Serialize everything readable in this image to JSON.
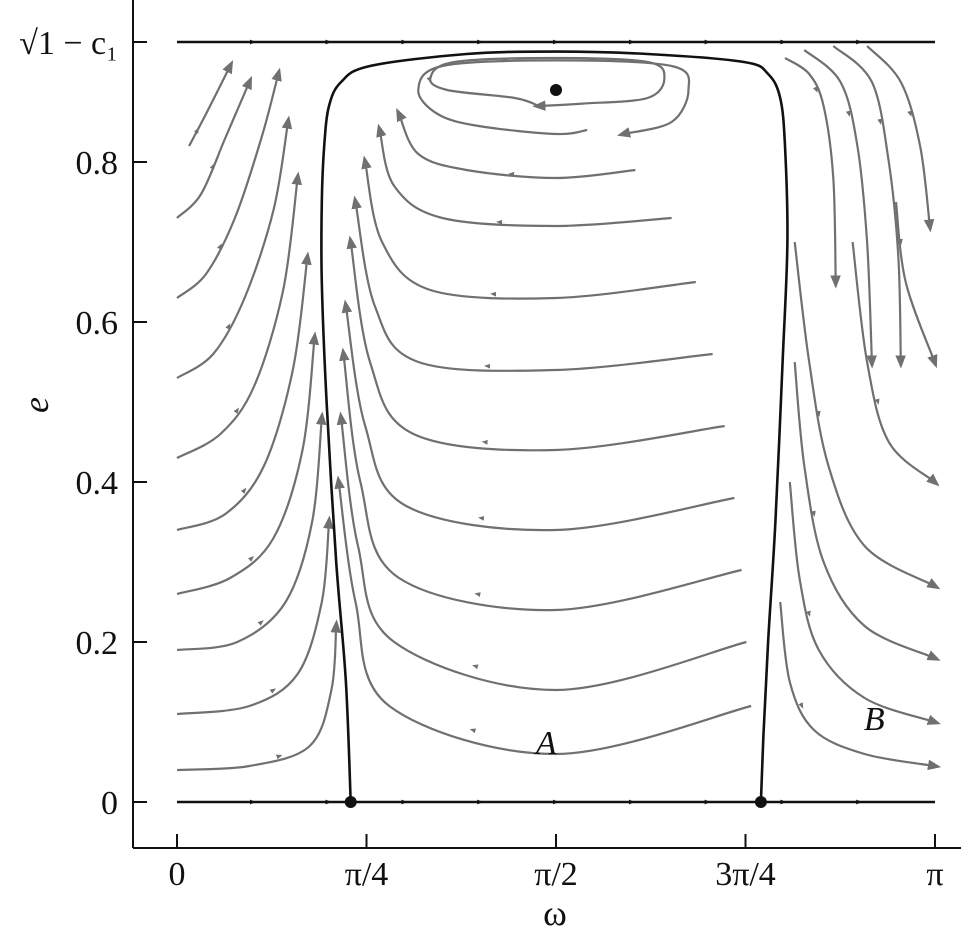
{
  "chart_data": {
    "type": "streamplot",
    "xlabel": "ω",
    "ylabel": "e",
    "xlim": [
      0,
      3.14159
    ],
    "ylim": [
      0,
      0.95
    ],
    "x_ticks": [
      {
        "value": 0,
        "label": "0"
      },
      {
        "value": 0.7854,
        "label": "π/4"
      },
      {
        "value": 1.5708,
        "label": "π/2"
      },
      {
        "value": 2.3562,
        "label": "3π/4"
      },
      {
        "value": 3.14159,
        "label": "π"
      }
    ],
    "y_ticks": [
      {
        "value": 0,
        "label": "0"
      },
      {
        "value": 0.2,
        "label": "0.2"
      },
      {
        "value": 0.4,
        "label": "0.4"
      },
      {
        "value": 0.6,
        "label": "0.6"
      },
      {
        "value": 0.8,
        "label": "0.8"
      },
      {
        "value": 0.95,
        "label": "√1 − c₁"
      }
    ],
    "top_label": "√1 − c₁",
    "region_labels": [
      {
        "text": "A",
        "x": 1.53,
        "y": 0.06
      },
      {
        "text": "B",
        "x": 2.89,
        "y": 0.09
      }
    ],
    "fixed_points": [
      {
        "name": "center",
        "x": 1.5708,
        "y": 0.89
      },
      {
        "name": "saddle-left",
        "x": 0.72,
        "y": 0.0
      },
      {
        "name": "saddle-right",
        "x": 2.42,
        "y": 0.0
      }
    ],
    "boundary_lines": [
      {
        "name": "e-zero-line",
        "y": 0.0
      },
      {
        "name": "e-max-line",
        "y": 0.95
      }
    ],
    "separatrix": {
      "points": [
        [
          0.72,
          0.0
        ],
        [
          0.7,
          0.15
        ],
        [
          0.66,
          0.3
        ],
        [
          0.62,
          0.5
        ],
        [
          0.6,
          0.65
        ],
        [
          0.6,
          0.75
        ],
        [
          0.61,
          0.82
        ],
        [
          0.63,
          0.87
        ],
        [
          0.68,
          0.9
        ],
        [
          0.8,
          0.92
        ],
        [
          1.2,
          0.935
        ],
        [
          1.57,
          0.938
        ],
        [
          1.95,
          0.935
        ],
        [
          2.35,
          0.925
        ],
        [
          2.45,
          0.91
        ],
        [
          2.5,
          0.88
        ],
        [
          2.52,
          0.82
        ],
        [
          2.53,
          0.7
        ],
        [
          2.51,
          0.55
        ],
        [
          2.48,
          0.35
        ],
        [
          2.45,
          0.2
        ],
        [
          2.43,
          0.08
        ],
        [
          2.42,
          0.0
        ]
      ]
    },
    "streamlines": [
      [
        [
          1.5,
          0.87
        ],
        [
          1.4,
          0.88
        ],
        [
          1.12,
          0.89
        ],
        [
          1.05,
          0.905
        ],
        [
          1.15,
          0.925
        ],
        [
          1.57,
          0.93
        ],
        [
          1.95,
          0.925
        ],
        [
          2.02,
          0.905
        ],
        [
          1.95,
          0.88
        ],
        [
          1.68,
          0.873
        ],
        [
          1.5,
          0.87
        ]
      ],
      [
        [
          1.7,
          0.84
        ],
        [
          1.57,
          0.835
        ],
        [
          1.25,
          0.845
        ],
        [
          1.08,
          0.86
        ],
        [
          1.0,
          0.89
        ],
        [
          1.1,
          0.92
        ],
        [
          1.57,
          0.927
        ],
        [
          2.05,
          0.92
        ],
        [
          2.12,
          0.89
        ],
        [
          2.05,
          0.85
        ],
        [
          1.85,
          0.835
        ]
      ],
      [
        [
          1.9,
          0.79
        ],
        [
          1.57,
          0.78
        ],
        [
          1.2,
          0.79
        ],
        [
          1.0,
          0.81
        ],
        [
          0.92,
          0.86
        ]
      ],
      [
        [
          2.05,
          0.73
        ],
        [
          1.57,
          0.72
        ],
        [
          1.1,
          0.73
        ],
        [
          0.9,
          0.77
        ],
        [
          0.84,
          0.84
        ]
      ],
      [
        [
          2.15,
          0.65
        ],
        [
          1.57,
          0.63
        ],
        [
          1.05,
          0.64
        ],
        [
          0.85,
          0.7
        ],
        [
          0.78,
          0.8
        ]
      ],
      [
        [
          2.22,
          0.56
        ],
        [
          1.57,
          0.54
        ],
        [
          1.0,
          0.55
        ],
        [
          0.82,
          0.62
        ],
        [
          0.74,
          0.75
        ]
      ],
      [
        [
          2.27,
          0.47
        ],
        [
          1.57,
          0.44
        ],
        [
          0.98,
          0.46
        ],
        [
          0.8,
          0.55
        ],
        [
          0.72,
          0.7
        ]
      ],
      [
        [
          2.31,
          0.38
        ],
        [
          1.57,
          0.34
        ],
        [
          0.95,
          0.37
        ],
        [
          0.78,
          0.47
        ],
        [
          0.7,
          0.62
        ]
      ],
      [
        [
          2.34,
          0.29
        ],
        [
          1.57,
          0.24
        ],
        [
          0.92,
          0.28
        ],
        [
          0.76,
          0.4
        ],
        [
          0.69,
          0.56
        ]
      ],
      [
        [
          2.36,
          0.2
        ],
        [
          1.57,
          0.14
        ],
        [
          0.9,
          0.2
        ],
        [
          0.75,
          0.32
        ],
        [
          0.68,
          0.48
        ]
      ],
      [
        [
          2.38,
          0.12
        ],
        [
          1.57,
          0.06
        ],
        [
          0.88,
          0.12
        ],
        [
          0.74,
          0.25
        ],
        [
          0.67,
          0.4
        ]
      ],
      [
        [
          0.0,
          0.04
        ],
        [
          0.3,
          0.045
        ],
        [
          0.55,
          0.07
        ],
        [
          0.64,
          0.14
        ],
        [
          0.66,
          0.22
        ]
      ],
      [
        [
          0.0,
          0.11
        ],
        [
          0.3,
          0.12
        ],
        [
          0.5,
          0.16
        ],
        [
          0.6,
          0.25
        ],
        [
          0.63,
          0.35
        ]
      ],
      [
        [
          0.0,
          0.19
        ],
        [
          0.25,
          0.2
        ],
        [
          0.45,
          0.25
        ],
        [
          0.56,
          0.35
        ],
        [
          0.6,
          0.48
        ]
      ],
      [
        [
          0.0,
          0.26
        ],
        [
          0.22,
          0.28
        ],
        [
          0.4,
          0.33
        ],
        [
          0.52,
          0.44
        ],
        [
          0.57,
          0.58
        ]
      ],
      [
        [
          0.0,
          0.34
        ],
        [
          0.2,
          0.36
        ],
        [
          0.36,
          0.42
        ],
        [
          0.48,
          0.54
        ],
        [
          0.54,
          0.68
        ]
      ],
      [
        [
          0.0,
          0.43
        ],
        [
          0.18,
          0.46
        ],
        [
          0.32,
          0.52
        ],
        [
          0.44,
          0.64
        ],
        [
          0.5,
          0.78
        ]
      ],
      [
        [
          0.0,
          0.53
        ],
        [
          0.15,
          0.56
        ],
        [
          0.28,
          0.63
        ],
        [
          0.4,
          0.74
        ],
        [
          0.46,
          0.85
        ]
      ],
      [
        [
          0.0,
          0.63
        ],
        [
          0.12,
          0.66
        ],
        [
          0.24,
          0.73
        ],
        [
          0.35,
          0.83
        ],
        [
          0.42,
          0.91
        ]
      ],
      [
        [
          0.0,
          0.73
        ],
        [
          0.1,
          0.76
        ],
        [
          0.2,
          0.83
        ],
        [
          0.3,
          0.9
        ]
      ],
      [
        [
          0.05,
          0.82
        ],
        [
          0.12,
          0.86
        ],
        [
          0.22,
          0.92
        ]
      ],
      [
        [
          2.52,
          0.93
        ],
        [
          2.62,
          0.91
        ],
        [
          2.68,
          0.87
        ],
        [
          2.72,
          0.78
        ],
        [
          2.73,
          0.65
        ]
      ],
      [
        [
          2.6,
          0.94
        ],
        [
          2.75,
          0.9
        ],
        [
          2.82,
          0.82
        ],
        [
          2.86,
          0.7
        ],
        [
          2.88,
          0.55
        ]
      ],
      [
        [
          2.72,
          0.945
        ],
        [
          2.88,
          0.9
        ],
        [
          2.95,
          0.8
        ],
        [
          2.99,
          0.68
        ],
        [
          3.0,
          0.55
        ]
      ],
      [
        [
          2.86,
          0.945
        ],
        [
          3.0,
          0.9
        ],
        [
          3.08,
          0.82
        ],
        [
          3.12,
          0.72
        ]
      ],
      [
        [
          2.56,
          0.7
        ],
        [
          2.62,
          0.55
        ],
        [
          2.7,
          0.42
        ],
        [
          2.85,
          0.32
        ],
        [
          3.14,
          0.27
        ]
      ],
      [
        [
          2.56,
          0.55
        ],
        [
          2.6,
          0.42
        ],
        [
          2.68,
          0.3
        ],
        [
          2.85,
          0.22
        ],
        [
          3.14,
          0.18
        ]
      ],
      [
        [
          2.54,
          0.4
        ],
        [
          2.58,
          0.28
        ],
        [
          2.66,
          0.19
        ],
        [
          2.85,
          0.13
        ],
        [
          3.14,
          0.1
        ]
      ],
      [
        [
          2.5,
          0.25
        ],
        [
          2.54,
          0.15
        ],
        [
          2.64,
          0.09
        ],
        [
          2.85,
          0.06
        ],
        [
          3.14,
          0.045
        ]
      ],
      [
        [
          2.8,
          0.7
        ],
        [
          2.86,
          0.55
        ],
        [
          2.95,
          0.45
        ],
        [
          3.14,
          0.4
        ]
      ],
      [
        [
          2.98,
          0.75
        ],
        [
          3.02,
          0.65
        ],
        [
          3.14,
          0.55
        ]
      ]
    ]
  }
}
